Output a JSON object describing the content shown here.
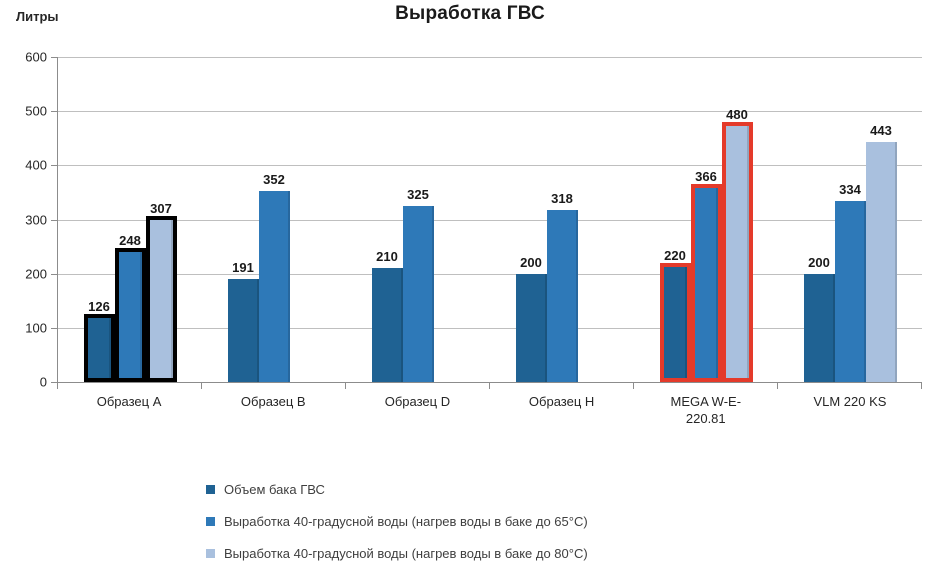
{
  "title": "Выработка ГВС",
  "unit_label": "Литры",
  "chart_data": {
    "type": "bar",
    "title": "Выработка ГВС",
    "ylabel": "Литры",
    "ylim": [
      0,
      600
    ],
    "yticks": [
      0,
      100,
      200,
      300,
      400,
      500,
      600
    ],
    "grid": true,
    "legend_position": "bottom-left",
    "categories": [
      "Образец A",
      "Образец B",
      "Образец D",
      "Образец H",
      "MEGA W-E-220.81",
      "VLM 220 KS"
    ],
    "series": [
      {
        "name": "Объем бака ГВС",
        "color": "#1F6293",
        "values": [
          126,
          191,
          210,
          200,
          220,
          200
        ]
      },
      {
        "name": "Выработка 40-градусной воды (нагрев воды в баке до 65°C)",
        "color": "#2E79B8",
        "values": [
          248,
          352,
          325,
          318,
          366,
          334
        ]
      },
      {
        "name": "Выработка 40-градусной воды (нагрев воды в баке до 80°C)",
        "color": "#A9C0DE",
        "values": [
          307,
          null,
          null,
          null,
          480,
          443
        ]
      }
    ],
    "highlighted_groups": [
      {
        "category_index": 0,
        "outline_color": "#000000",
        "outline_width": 4
      },
      {
        "category_index": 4,
        "outline_color": "#E43A2A",
        "outline_width": 4
      }
    ]
  }
}
